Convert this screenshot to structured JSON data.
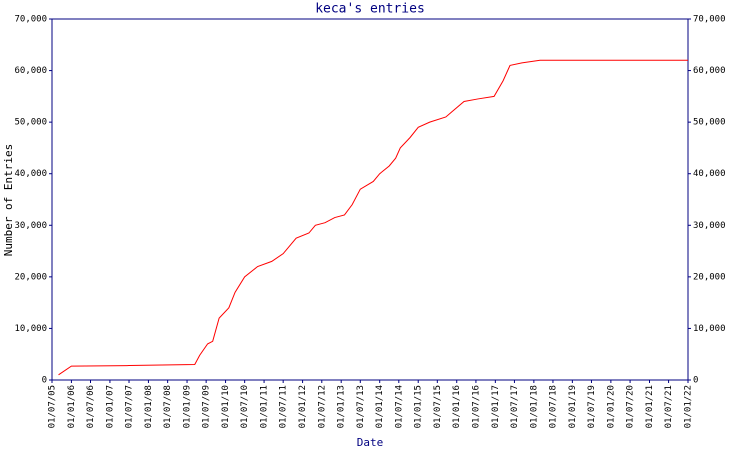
{
  "chart_data": {
    "type": "line",
    "title": "keca's entries",
    "xlabel": "Date",
    "ylabel": "Number of Entries",
    "x": [
      "2005-09-01",
      "2006-01-01",
      "2007-07-01",
      "2009-03-15",
      "2009-05-01",
      "2009-07-15",
      "2009-09-01",
      "2009-11-01",
      "2010-02-01",
      "2010-04-01",
      "2010-07-01",
      "2010-11-01",
      "2011-03-15",
      "2011-07-01",
      "2011-11-01",
      "2012-03-01",
      "2012-05-01",
      "2012-08-01",
      "2012-11-01",
      "2013-02-01",
      "2013-04-15",
      "2013-07-01",
      "2013-11-01",
      "2014-01-01",
      "2014-04-01",
      "2014-06-01",
      "2014-07-15",
      "2014-10-15",
      "2015-01-01",
      "2015-04-20",
      "2015-09-20",
      "2015-11-15",
      "2016-03-10",
      "2016-07-20",
      "2016-12-20",
      "2017-03-15",
      "2017-05-20",
      "2017-09-10",
      "2018-03-01",
      "2022-01-01"
    ],
    "series": [
      {
        "name": "entries",
        "color": "#ff0000",
        "values": [
          1000,
          2700,
          2800,
          3000,
          4800,
          7000,
          7500,
          12000,
          14000,
          17000,
          20000,
          22000,
          23000,
          24500,
          27500,
          28500,
          30000,
          30500,
          31500,
          32000,
          34000,
          37000,
          38500,
          40000,
          41500,
          43000,
          45000,
          47000,
          49000,
          50000,
          51000,
          52000,
          54000,
          54500,
          55000,
          58000,
          61000,
          61500,
          62000,
          62000
        ]
      }
    ],
    "xlim": [
      "2005-07-01",
      "2022-01-01"
    ],
    "xticks": [
      {
        "value": "2005-07-01",
        "label": "01/07/05"
      },
      {
        "value": "2006-01-01",
        "label": "01/01/06"
      },
      {
        "value": "2006-07-01",
        "label": "01/07/06"
      },
      {
        "value": "2007-01-01",
        "label": "01/01/07"
      },
      {
        "value": "2007-07-01",
        "label": "01/07/07"
      },
      {
        "value": "2008-01-01",
        "label": "01/01/08"
      },
      {
        "value": "2008-07-01",
        "label": "01/07/08"
      },
      {
        "value": "2009-01-01",
        "label": "01/01/09"
      },
      {
        "value": "2009-07-01",
        "label": "01/07/09"
      },
      {
        "value": "2010-01-01",
        "label": "01/01/10"
      },
      {
        "value": "2010-07-01",
        "label": "01/07/10"
      },
      {
        "value": "2011-01-01",
        "label": "01/01/11"
      },
      {
        "value": "2011-07-01",
        "label": "01/07/11"
      },
      {
        "value": "2012-01-01",
        "label": "01/01/12"
      },
      {
        "value": "2012-07-01",
        "label": "01/07/12"
      },
      {
        "value": "2013-01-01",
        "label": "01/01/13"
      },
      {
        "value": "2013-07-01",
        "label": "01/07/13"
      },
      {
        "value": "2014-01-01",
        "label": "01/01/14"
      },
      {
        "value": "2014-07-01",
        "label": "01/07/14"
      },
      {
        "value": "2015-01-01",
        "label": "01/01/15"
      },
      {
        "value": "2015-07-01",
        "label": "01/07/15"
      },
      {
        "value": "2016-01-01",
        "label": "01/01/16"
      },
      {
        "value": "2016-07-01",
        "label": "01/07/16"
      },
      {
        "value": "2017-01-01",
        "label": "01/01/17"
      },
      {
        "value": "2017-07-01",
        "label": "01/07/17"
      },
      {
        "value": "2018-01-01",
        "label": "01/01/18"
      },
      {
        "value": "2018-07-01",
        "label": "01/07/18"
      },
      {
        "value": "2019-01-01",
        "label": "01/01/19"
      },
      {
        "value": "2019-07-01",
        "label": "01/07/19"
      },
      {
        "value": "2020-01-01",
        "label": "01/01/20"
      },
      {
        "value": "2020-07-01",
        "label": "01/07/20"
      },
      {
        "value": "2021-01-01",
        "label": "01/01/21"
      },
      {
        "value": "2021-07-01",
        "label": "01/07/21"
      },
      {
        "value": "2022-01-01",
        "label": "01/01/22"
      }
    ],
    "ylim": [
      0,
      70000
    ],
    "yticks": [
      0,
      {
        "value": 10000,
        "label": "10,000"
      },
      {
        "value": 20000,
        "label": "20,000"
      },
      {
        "value": 30000,
        "label": "30,000"
      },
      {
        "value": 40000,
        "label": "40,000"
      },
      {
        "value": 50000,
        "label": "50,000"
      },
      {
        "value": 60000,
        "label": "60,000"
      },
      {
        "value": 70000,
        "label": "70,000"
      }
    ],
    "axis_color": "#000080"
  }
}
